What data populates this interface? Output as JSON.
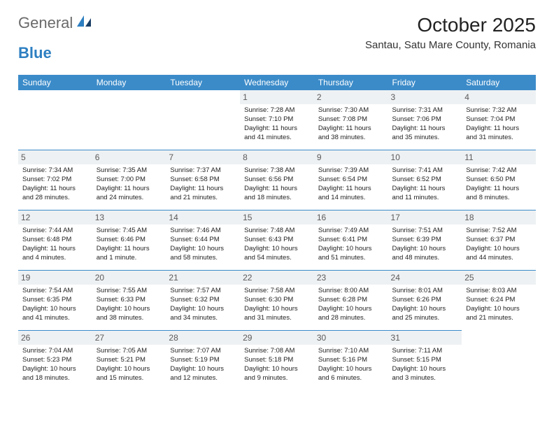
{
  "brand": {
    "part1": "General",
    "part2": "Blue"
  },
  "title": "October 2025",
  "location": "Santau, Satu Mare County, Romania",
  "colors": {
    "header_bg": "#3b8bc9",
    "header_text": "#ffffff",
    "daynum_bg": "#eef1f3",
    "daynum_text": "#5a5a5a",
    "row_border": "#3b8bc9",
    "brand_gray": "#6a6a6a",
    "brand_blue": "#2d7fc1"
  },
  "day_headers": [
    "Sunday",
    "Monday",
    "Tuesday",
    "Wednesday",
    "Thursday",
    "Friday",
    "Saturday"
  ],
  "weeks": [
    [
      null,
      null,
      null,
      {
        "n": "1",
        "sunrise": "7:28 AM",
        "sunset": "7:10 PM",
        "daylight": "11 hours and 41 minutes."
      },
      {
        "n": "2",
        "sunrise": "7:30 AM",
        "sunset": "7:08 PM",
        "daylight": "11 hours and 38 minutes."
      },
      {
        "n": "3",
        "sunrise": "7:31 AM",
        "sunset": "7:06 PM",
        "daylight": "11 hours and 35 minutes."
      },
      {
        "n": "4",
        "sunrise": "7:32 AM",
        "sunset": "7:04 PM",
        "daylight": "11 hours and 31 minutes."
      }
    ],
    [
      {
        "n": "5",
        "sunrise": "7:34 AM",
        "sunset": "7:02 PM",
        "daylight": "11 hours and 28 minutes."
      },
      {
        "n": "6",
        "sunrise": "7:35 AM",
        "sunset": "7:00 PM",
        "daylight": "11 hours and 24 minutes."
      },
      {
        "n": "7",
        "sunrise": "7:37 AM",
        "sunset": "6:58 PM",
        "daylight": "11 hours and 21 minutes."
      },
      {
        "n": "8",
        "sunrise": "7:38 AM",
        "sunset": "6:56 PM",
        "daylight": "11 hours and 18 minutes."
      },
      {
        "n": "9",
        "sunrise": "7:39 AM",
        "sunset": "6:54 PM",
        "daylight": "11 hours and 14 minutes."
      },
      {
        "n": "10",
        "sunrise": "7:41 AM",
        "sunset": "6:52 PM",
        "daylight": "11 hours and 11 minutes."
      },
      {
        "n": "11",
        "sunrise": "7:42 AM",
        "sunset": "6:50 PM",
        "daylight": "11 hours and 8 minutes."
      }
    ],
    [
      {
        "n": "12",
        "sunrise": "7:44 AM",
        "sunset": "6:48 PM",
        "daylight": "11 hours and 4 minutes."
      },
      {
        "n": "13",
        "sunrise": "7:45 AM",
        "sunset": "6:46 PM",
        "daylight": "11 hours and 1 minute."
      },
      {
        "n": "14",
        "sunrise": "7:46 AM",
        "sunset": "6:44 PM",
        "daylight": "10 hours and 58 minutes."
      },
      {
        "n": "15",
        "sunrise": "7:48 AM",
        "sunset": "6:43 PM",
        "daylight": "10 hours and 54 minutes."
      },
      {
        "n": "16",
        "sunrise": "7:49 AM",
        "sunset": "6:41 PM",
        "daylight": "10 hours and 51 minutes."
      },
      {
        "n": "17",
        "sunrise": "7:51 AM",
        "sunset": "6:39 PM",
        "daylight": "10 hours and 48 minutes."
      },
      {
        "n": "18",
        "sunrise": "7:52 AM",
        "sunset": "6:37 PM",
        "daylight": "10 hours and 44 minutes."
      }
    ],
    [
      {
        "n": "19",
        "sunrise": "7:54 AM",
        "sunset": "6:35 PM",
        "daylight": "10 hours and 41 minutes."
      },
      {
        "n": "20",
        "sunrise": "7:55 AM",
        "sunset": "6:33 PM",
        "daylight": "10 hours and 38 minutes."
      },
      {
        "n": "21",
        "sunrise": "7:57 AM",
        "sunset": "6:32 PM",
        "daylight": "10 hours and 34 minutes."
      },
      {
        "n": "22",
        "sunrise": "7:58 AM",
        "sunset": "6:30 PM",
        "daylight": "10 hours and 31 minutes."
      },
      {
        "n": "23",
        "sunrise": "8:00 AM",
        "sunset": "6:28 PM",
        "daylight": "10 hours and 28 minutes."
      },
      {
        "n": "24",
        "sunrise": "8:01 AM",
        "sunset": "6:26 PM",
        "daylight": "10 hours and 25 minutes."
      },
      {
        "n": "25",
        "sunrise": "8:03 AM",
        "sunset": "6:24 PM",
        "daylight": "10 hours and 21 minutes."
      }
    ],
    [
      {
        "n": "26",
        "sunrise": "7:04 AM",
        "sunset": "5:23 PM",
        "daylight": "10 hours and 18 minutes."
      },
      {
        "n": "27",
        "sunrise": "7:05 AM",
        "sunset": "5:21 PM",
        "daylight": "10 hours and 15 minutes."
      },
      {
        "n": "28",
        "sunrise": "7:07 AM",
        "sunset": "5:19 PM",
        "daylight": "10 hours and 12 minutes."
      },
      {
        "n": "29",
        "sunrise": "7:08 AM",
        "sunset": "5:18 PM",
        "daylight": "10 hours and 9 minutes."
      },
      {
        "n": "30",
        "sunrise": "7:10 AM",
        "sunset": "5:16 PM",
        "daylight": "10 hours and 6 minutes."
      },
      {
        "n": "31",
        "sunrise": "7:11 AM",
        "sunset": "5:15 PM",
        "daylight": "10 hours and 3 minutes."
      },
      null
    ]
  ],
  "labels": {
    "sunrise_prefix": "Sunrise: ",
    "sunset_prefix": "Sunset: ",
    "daylight_prefix": "Daylight: "
  }
}
